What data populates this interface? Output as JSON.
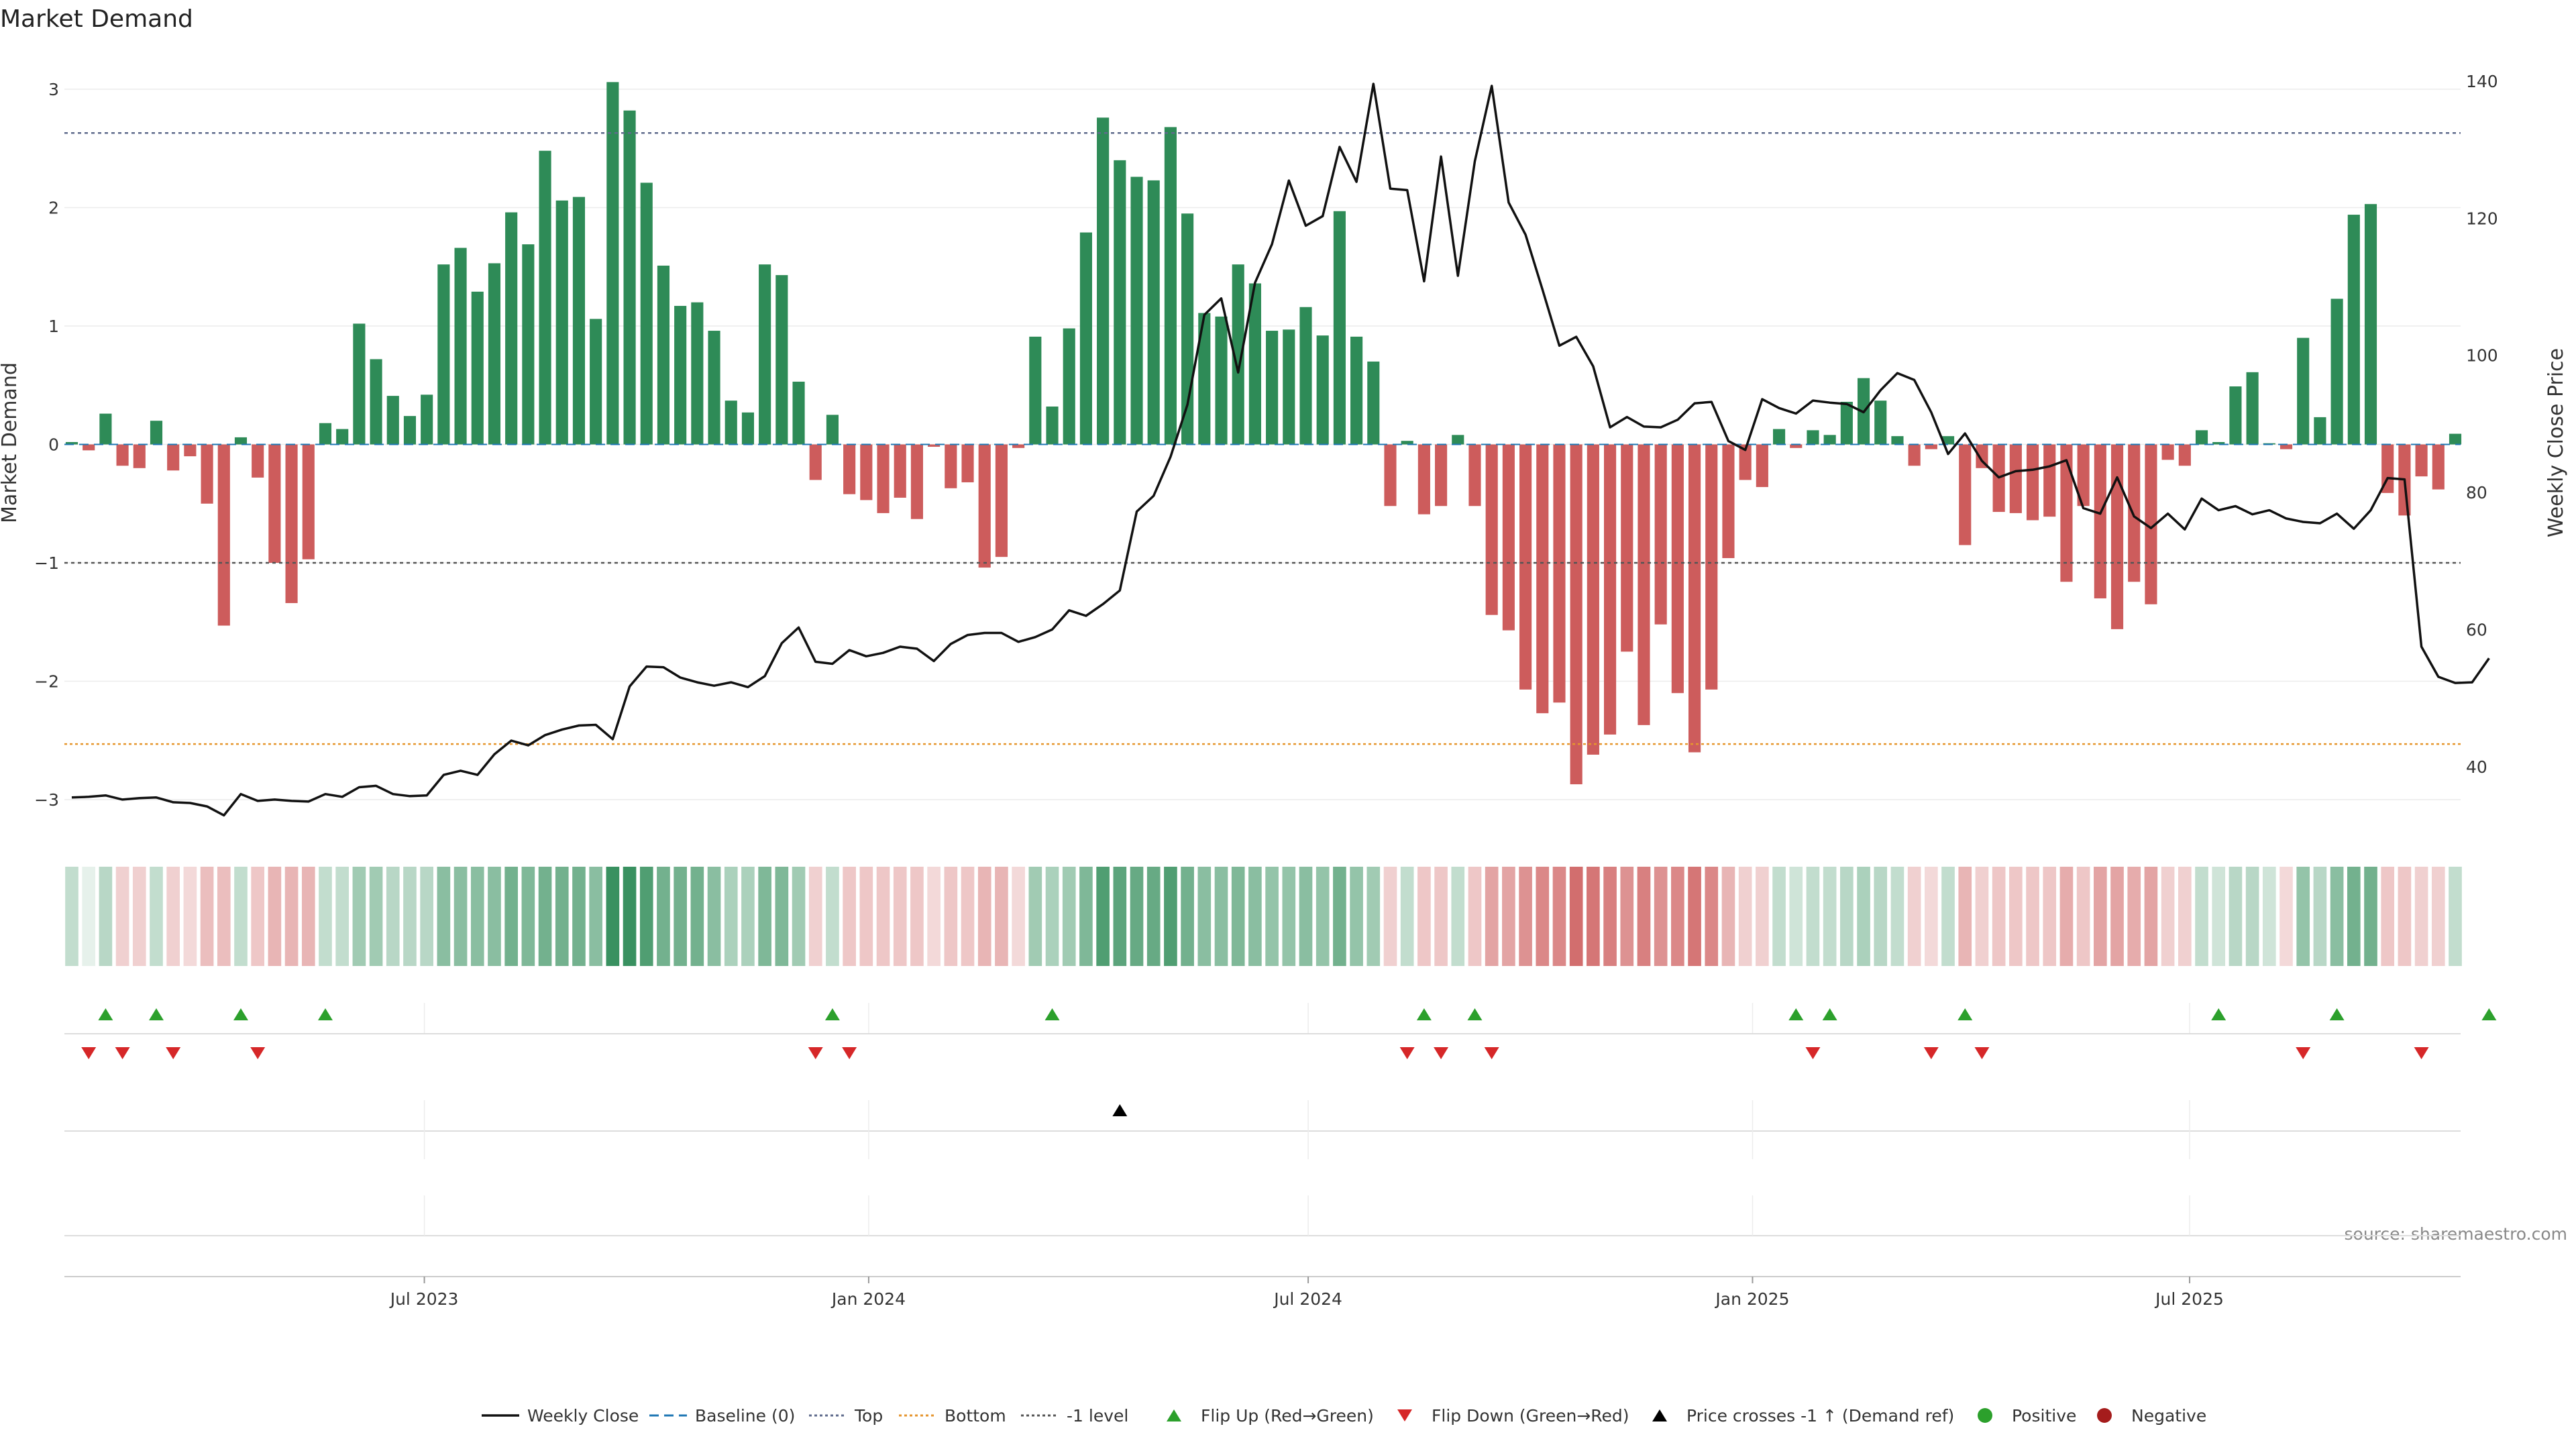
{
  "chart_data": {
    "type": "bar",
    "title": "Market Demand",
    "ylabel": "Market Demand",
    "ylabel_right": "Weekly Close Price",
    "ylim": [
      -3.3,
      3.3
    ],
    "ylim_right": [
      30,
      144
    ],
    "yticks": [
      "3",
      "2",
      "1",
      "0",
      "−1",
      "−2",
      "−3"
    ],
    "yticks_right": [
      "140",
      "120",
      "100",
      "80",
      "60",
      "40"
    ],
    "x_start": "2023-02-05",
    "x_step_days": 7,
    "x_ticks": [
      "Jul 2023",
      "Jan 2024",
      "Jul 2024",
      "Jan 2025",
      "Jul 2025"
    ],
    "x_tick_dates": [
      "2023-07-01",
      "2024-01-01",
      "2024-07-01",
      "2025-01-01",
      "2025-07-01"
    ],
    "source": "source: sharemaestro.com",
    "reference_lines": [
      {
        "name": "Top",
        "value": 2.63,
        "color": "#5f6b8c"
      },
      {
        "name": "Bottom",
        "value": -2.53,
        "color": "#e6962e"
      },
      {
        "name": "-1 level",
        "value": -1,
        "color": "#555555"
      },
      {
        "name": "Baseline (0)",
        "value": 0,
        "color": "#1f77b4"
      }
    ],
    "colors": {
      "positive": "#2e8b57",
      "negative": "#cd5c5c",
      "price": "#111111",
      "flip_up": "#2ca02c",
      "flip_down": "#d62728",
      "cross": "#000000"
    },
    "series": [
      {
        "name": "Market Demand",
        "values": [
          0.02,
          -0.05,
          0.26,
          -0.18,
          -0.2,
          0.2,
          -0.22,
          -0.1,
          -0.5,
          -1.53,
          0.06,
          -0.28,
          -1.0,
          -1.34,
          -0.97,
          0.18,
          0.13,
          1.02,
          0.72,
          0.41,
          0.24,
          0.42,
          1.52,
          1.66,
          1.29,
          1.53,
          1.96,
          1.69,
          2.48,
          2.06,
          2.09,
          1.06,
          3.06,
          2.82,
          2.21,
          1.51,
          1.17,
          1.2,
          0.96,
          0.37,
          0.27,
          1.52,
          1.43,
          0.53,
          -0.3,
          0.25,
          -0.42,
          -0.47,
          -0.58,
          -0.45,
          -0.63,
          -0.02,
          -0.37,
          -0.32,
          -1.04,
          -0.95,
          -0.03,
          0.91,
          0.32,
          0.98,
          1.79,
          2.76,
          2.4,
          2.26,
          2.23,
          2.68,
          1.95,
          1.11,
          1.08,
          1.52,
          1.36,
          0.96,
          0.97,
          1.16,
          0.92,
          1.97,
          0.91,
          0.7,
          -0.52,
          0.03,
          -0.59,
          -0.52,
          0.08,
          -0.52,
          -1.44,
          -1.57,
          -2.07,
          -2.27,
          -2.18,
          -2.87,
          -2.62,
          -2.45,
          -1.75,
          -2.37,
          -1.52,
          -2.1,
          -2.6,
          -2.07,
          -0.96,
          -0.3,
          -0.36,
          0.13,
          -0.03,
          0.12,
          0.08,
          0.36,
          0.56,
          0.37,
          0.07,
          -0.18,
          -0.04,
          0.07,
          -0.85,
          -0.2,
          -0.57,
          -0.58,
          -0.64,
          -0.61,
          -1.16,
          -0.52,
          -1.3,
          -1.56,
          -1.16,
          -1.35,
          -0.13,
          -0.18,
          0.12,
          0.02,
          0.49,
          0.61,
          0.01,
          -0.04,
          0.9,
          0.23,
          1.23,
          1.94,
          2.03,
          -0.41,
          -0.6,
          -0.27,
          -0.38,
          0.09
        ]
      },
      {
        "name": "Weekly Close",
        "values": [
          35.5,
          35.6,
          35.8,
          35.2,
          35.4,
          35.5,
          34.8,
          34.7,
          34.2,
          32.9,
          36.0,
          35.0,
          35.2,
          35.0,
          34.9,
          36.0,
          35.6,
          37.0,
          37.2,
          36.0,
          35.7,
          35.8,
          38.8,
          39.4,
          38.8,
          41.8,
          43.8,
          43.1,
          44.6,
          45.4,
          46.0,
          46.1,
          44.0,
          51.7,
          54.6,
          54.5,
          53.0,
          52.3,
          51.8,
          52.3,
          51.6,
          53.2,
          58.0,
          60.3,
          55.3,
          55.0,
          57.0,
          56.1,
          56.6,
          57.5,
          57.2,
          55.4,
          57.9,
          59.2,
          59.5,
          59.5,
          58.2,
          58.9,
          60.0,
          62.8,
          62.0,
          63.7,
          65.7,
          77.2,
          79.5,
          85.2,
          92.8,
          105.9,
          108.3,
          97.5,
          110.6,
          116.2,
          125.5,
          118.9,
          120.3,
          130.4,
          125.3,
          139.6,
          124.3,
          124.1,
          110.8,
          129.0,
          111.6,
          128.3,
          139.3,
          122.3,
          117.6,
          109.6,
          101.4,
          102.7,
          98.4,
          89.5,
          91.0,
          89.6,
          89.5,
          90.6,
          93.0,
          93.2,
          87.5,
          86.2,
          93.6,
          92.3,
          91.5,
          93.4,
          93.1,
          92.9,
          91.7,
          94.9,
          97.4,
          96.4,
          91.7,
          85.6,
          88.6,
          84.6,
          82.2,
          83.1,
          83.3,
          83.8,
          84.7,
          77.7,
          76.9,
          82.2,
          76.5,
          74.8,
          76.9,
          74.6,
          79.1,
          77.4,
          78.0,
          76.8,
          77.4,
          76.2,
          75.7,
          75.5,
          76.9,
          74.7,
          77.4,
          82.1,
          81.9,
          57.5,
          53.1,
          52.2,
          52.3,
          55.8
        ]
      }
    ],
    "regime_strip": [
      0.3,
      0.0,
      0.4,
      -0.3,
      -0.3,
      0.3,
      -0.3,
      -0.2,
      -0.5,
      -0.5,
      0.3,
      -0.4,
      -0.6,
      -0.6,
      -0.6,
      0.3,
      0.3,
      0.6,
      0.6,
      0.4,
      0.4,
      0.4,
      0.8,
      0.8,
      0.8,
      0.8,
      1.0,
      0.9,
      1.0,
      1.0,
      1.0,
      0.8,
      1.5,
      1.5,
      1.3,
      1.0,
      1.0,
      1.0,
      0.8,
      0.5,
      0.5,
      0.9,
      0.9,
      0.6,
      -0.3,
      0.3,
      -0.4,
      -0.4,
      -0.4,
      -0.4,
      -0.4,
      -0.2,
      -0.4,
      -0.4,
      -0.6,
      -0.6,
      -0.2,
      0.6,
      0.5,
      0.6,
      0.9,
      1.3,
      1.2,
      1.1,
      1.1,
      1.3,
      1.0,
      0.8,
      0.8,
      0.9,
      0.8,
      0.7,
      0.7,
      0.8,
      0.7,
      1.0,
      0.7,
      0.6,
      -0.3,
      0.3,
      -0.4,
      -0.4,
      0.3,
      -0.4,
      -0.8,
      -0.8,
      -1.0,
      -1.1,
      -1.1,
      -1.4,
      -1.3,
      -1.2,
      -1.0,
      -1.2,
      -1.0,
      -1.1,
      -1.3,
      -1.1,
      -0.6,
      -0.3,
      -0.3,
      0.3,
      0.2,
      0.3,
      0.3,
      0.4,
      0.5,
      0.4,
      0.3,
      -0.3,
      -0.2,
      0.3,
      -0.6,
      -0.3,
      -0.4,
      -0.4,
      -0.4,
      -0.4,
      -0.7,
      -0.4,
      -0.8,
      -0.8,
      -0.7,
      -0.8,
      -0.3,
      -0.3,
      0.3,
      0.2,
      0.4,
      0.4,
      0.2,
      -0.2,
      0.7,
      0.4,
      0.8,
      1.0,
      1.0,
      -0.4,
      -0.4,
      -0.3,
      -0.3,
      0.3
    ],
    "flip_up_weeks": [
      2,
      5,
      10,
      15,
      45,
      58,
      80,
      83,
      102,
      104,
      112,
      127,
      134,
      143
    ],
    "flip_down_weeks": [
      1,
      3,
      6,
      11,
      44,
      46,
      79,
      81,
      84,
      103,
      110,
      113,
      132,
      139
    ],
    "price_cross_weeks": [
      62
    ],
    "legend": [
      "Weekly Close",
      "Baseline (0)",
      "Top",
      "Bottom",
      "-1 level",
      "Flip Up (Red→Green)",
      "Flip Down (Green→Red)",
      "Price crosses -1 ↑ (Demand ref)",
      "Positive",
      "Negative"
    ]
  }
}
